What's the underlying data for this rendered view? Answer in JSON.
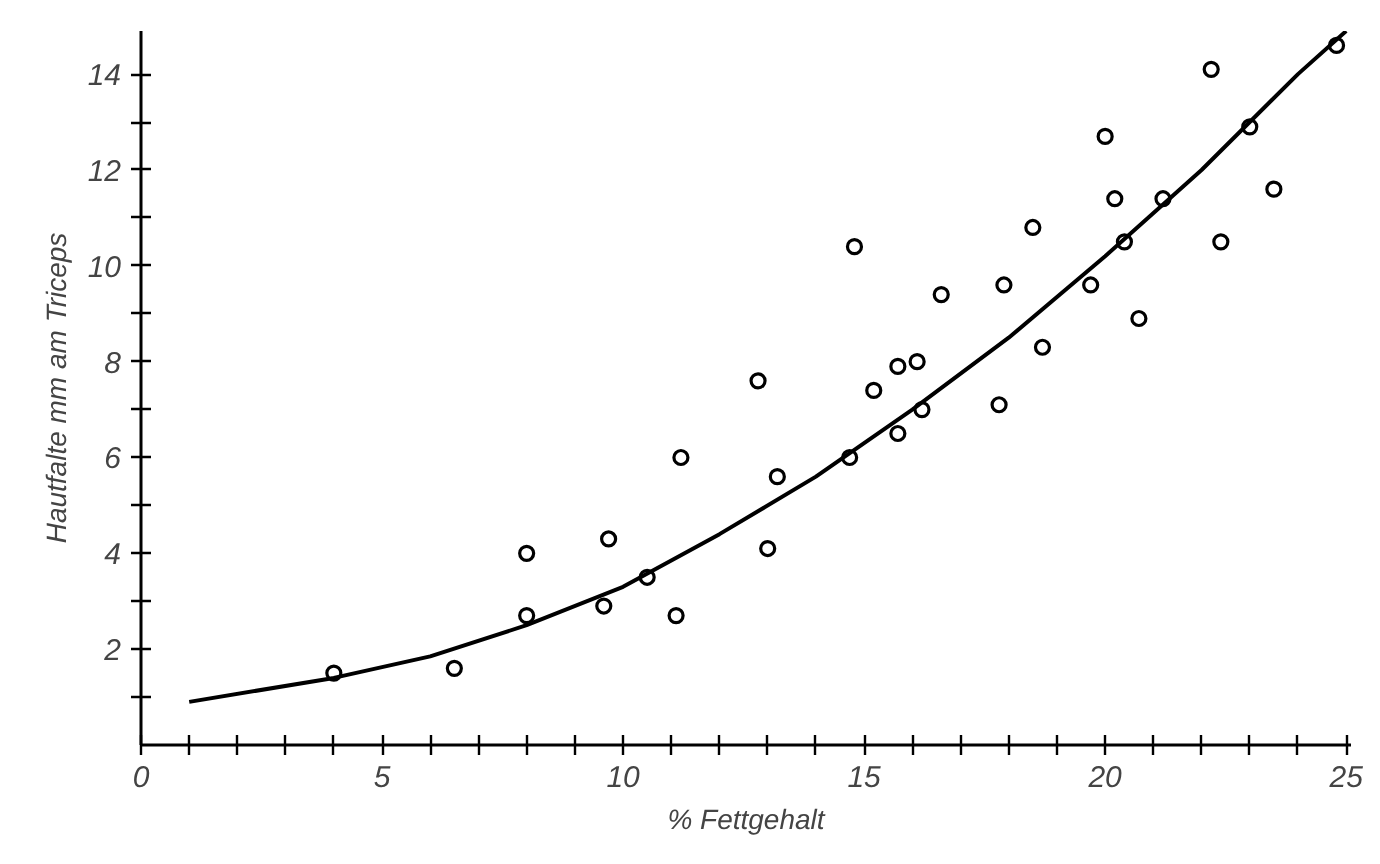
{
  "chart_data": {
    "type": "scatter",
    "xlabel": "% Fettgehalt",
    "ylabel": "Hautfalte mm am Triceps",
    "xlim": [
      0,
      25.1
    ],
    "ylim": [
      0,
      14.9
    ],
    "xticks": [
      0,
      {
        "value": 1,
        "label": null
      },
      {
        "value": 2,
        "label": null
      },
      {
        "value": 3,
        "label": null
      },
      {
        "value": 4,
        "label": null
      },
      5,
      {
        "value": 6,
        "label": null
      },
      {
        "value": 7,
        "label": null
      },
      {
        "value": 8,
        "label": null
      },
      {
        "value": 9,
        "label": null
      },
      10,
      {
        "value": 11,
        "label": null
      },
      {
        "value": 12,
        "label": null
      },
      {
        "value": 13,
        "label": null
      },
      {
        "value": 14,
        "label": null
      },
      15,
      {
        "value": 16,
        "label": null
      },
      {
        "value": 17,
        "label": null
      },
      {
        "value": 18,
        "label": null
      },
      {
        "value": 19,
        "label": null
      },
      20,
      {
        "value": 21,
        "label": null
      },
      {
        "value": 22,
        "label": null
      },
      {
        "value": 23,
        "label": null
      },
      {
        "value": 24,
        "label": null
      },
      25
    ],
    "yticks": [
      {
        "value": 1,
        "label": null
      },
      2,
      {
        "value": 3,
        "label": null
      },
      4,
      {
        "value": 5,
        "label": null
      },
      6,
      {
        "value": 7,
        "label": null
      },
      8,
      {
        "value": 9,
        "label": null
      },
      10,
      {
        "value": 11,
        "label": null
      },
      12,
      {
        "value": 13,
        "label": null
      },
      14
    ],
    "grid": false,
    "marker": "circle",
    "series": [
      {
        "color": "#000000",
        "x": [
          4.0,
          6.5,
          8.0,
          8.0,
          9.7,
          9.6,
          10.5,
          11.1,
          11.2,
          12.8,
          13.0,
          13.2,
          14.7,
          14.8,
          15.2,
          15.7,
          15.7,
          16.1,
          16.2,
          16.6,
          17.8,
          17.9,
          18.5,
          18.7,
          19.7,
          20.0,
          20.2,
          20.4,
          20.7,
          21.2,
          22.2,
          22.4,
          23.0,
          23.5,
          24.8
        ],
        "values": [
          1.5,
          1.6,
          4.0,
          2.7,
          4.3,
          2.9,
          3.5,
          2.7,
          6.0,
          7.6,
          4.1,
          5.6,
          6.0,
          10.4,
          7.4,
          6.5,
          7.9,
          8.0,
          7.0,
          9.4,
          7.1,
          9.6,
          10.8,
          8.3,
          9.6,
          12.7,
          11.4,
          10.5,
          8.9,
          11.4,
          14.1,
          10.5,
          12.9,
          11.6,
          14.6
        ]
      },
      {
        "type": "line",
        "color": "#000000",
        "marker": "none",
        "x": [
          1,
          4,
          6,
          8,
          10,
          12,
          14,
          16,
          18,
          20,
          22,
          24,
          25
        ],
        "values": [
          0.9,
          1.4,
          1.85,
          2.5,
          3.3,
          4.4,
          5.6,
          7.0,
          8.5,
          10.2,
          12.0,
          14.0,
          14.9
        ]
      }
    ]
  }
}
